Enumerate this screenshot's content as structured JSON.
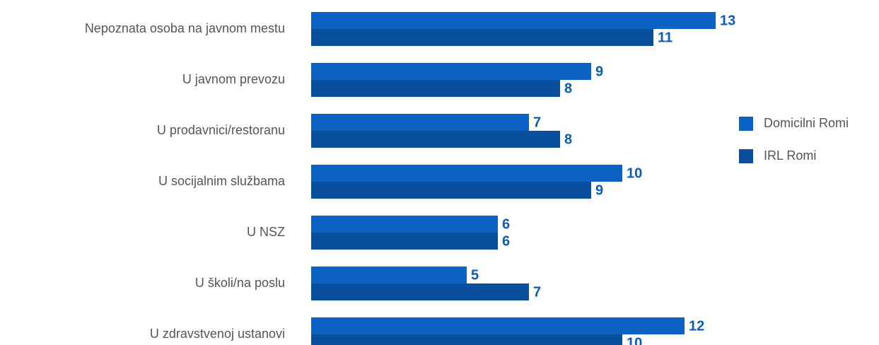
{
  "chart_data": {
    "type": "bar",
    "orientation": "horizontal",
    "categories": [
      "Nepoznata osoba na javnom mestu",
      "U javnom prevozu",
      "U prodavnici/restoranu",
      "U socijalnim službama",
      "U NSZ",
      "U školi/na poslu",
      "U zdravstvenoj ustanovi"
    ],
    "series": [
      {
        "name": "Domicilni Romi",
        "color": "#0b62c4",
        "values": [
          13,
          9,
          7,
          10,
          6,
          5,
          12
        ]
      },
      {
        "name": "IRL Romi",
        "color": "#0a4f9c",
        "values": [
          11,
          8,
          8,
          9,
          6,
          7,
          10
        ]
      }
    ],
    "legend": "right"
  }
}
